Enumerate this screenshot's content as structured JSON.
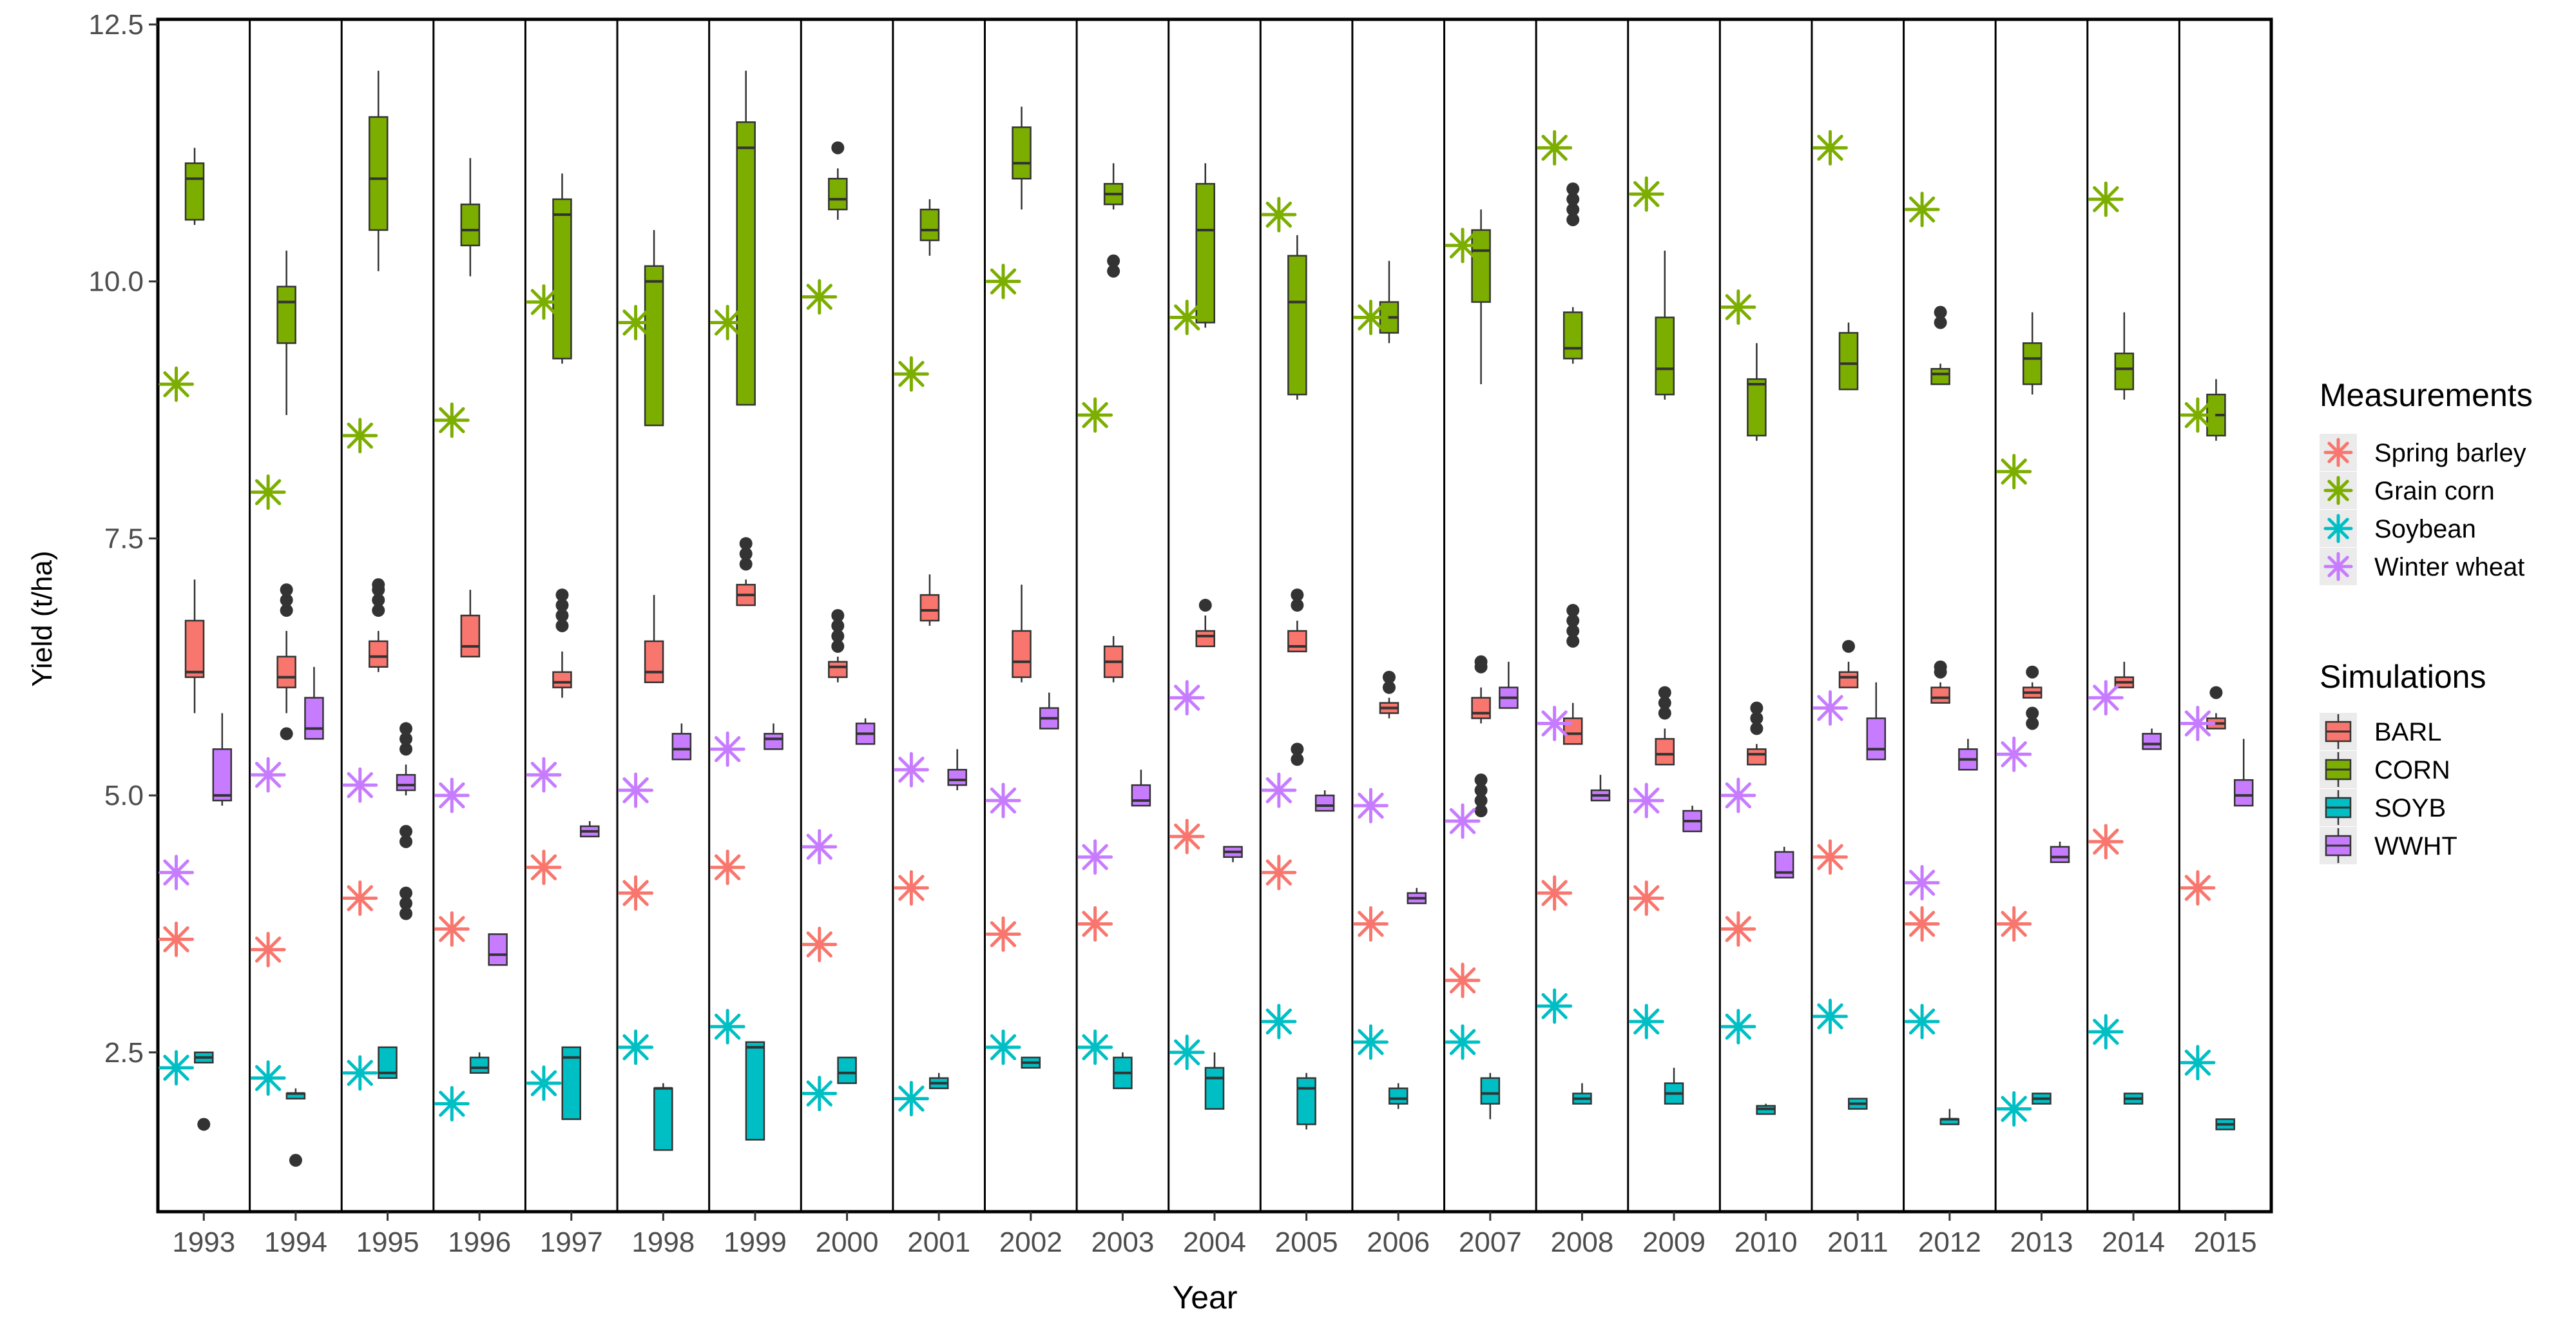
{
  "chart_data": {
    "type": "boxplot",
    "xlabel": "Year",
    "ylabel": "Yield (t/ha)",
    "ylim": [
      0.95,
      12.55
    ],
    "yticks": [
      {
        "value": 2.5,
        "label": "2.5"
      },
      {
        "value": 5.0,
        "label": "5.0"
      },
      {
        "value": 7.5,
        "label": "7.5"
      },
      {
        "value": 10.0,
        "label": "10.0"
      },
      {
        "value": 12.5,
        "label": "12.5"
      }
    ],
    "grid": false,
    "legend_position": "right",
    "facet_by": "year",
    "years": [
      "1993",
      "1994",
      "1995",
      "1996",
      "1997",
      "1998",
      "1999",
      "2000",
      "2001",
      "2002",
      "2003",
      "2004",
      "2005",
      "2006",
      "2007",
      "2008",
      "2009",
      "2010",
      "2011",
      "2012",
      "2013",
      "2014",
      "2015"
    ],
    "simulations": {
      "legend_title": "Simulations",
      "series": [
        {
          "name": "BARL",
          "color": "#F8766D",
          "boxes": [
            [
              5.8,
              6.15,
              6.2,
              6.7,
              7.1,
              []
            ],
            [
              5.8,
              6.05,
              6.15,
              6.35,
              6.6,
              [
                5.6,
                6.8,
                6.9,
                7.0
              ]
            ],
            [
              6.2,
              6.25,
              6.35,
              6.5,
              6.6,
              [
                6.8,
                6.9,
                7.0,
                7.05
              ]
            ],
            [
              6.35,
              6.35,
              6.45,
              6.75,
              7.0,
              []
            ],
            [
              5.95,
              6.05,
              6.1,
              6.2,
              6.4,
              [
                6.65,
                6.75,
                6.85,
                6.95
              ]
            ],
            [
              6.1,
              6.1,
              6.2,
              6.5,
              6.95,
              []
            ],
            [
              6.85,
              6.85,
              6.95,
              7.05,
              7.1,
              [
                7.25,
                7.35,
                7.45
              ]
            ],
            [
              6.1,
              6.15,
              6.25,
              6.3,
              6.35,
              [
                6.45,
                6.55,
                6.65,
                6.75
              ]
            ],
            [
              6.65,
              6.7,
              6.8,
              6.95,
              7.15,
              []
            ],
            [
              6.1,
              6.15,
              6.3,
              6.6,
              7.05,
              []
            ],
            [
              6.1,
              6.15,
              6.3,
              6.45,
              6.55,
              []
            ],
            [
              6.45,
              6.45,
              6.55,
              6.6,
              6.75,
              [
                6.85
              ]
            ],
            [
              6.4,
              6.4,
              6.45,
              6.6,
              6.7,
              [
                5.35,
                5.45,
                6.85,
                6.95
              ]
            ],
            [
              5.75,
              5.8,
              5.85,
              5.9,
              5.95,
              [
                6.05,
                6.15
              ]
            ],
            [
              5.7,
              5.75,
              5.8,
              5.95,
              6.05,
              [
                4.85,
                4.95,
                5.05,
                5.15,
                6.25,
                6.3
              ]
            ],
            [
              5.5,
              5.5,
              5.6,
              5.75,
              5.9,
              [
                6.5,
                6.6,
                6.7,
                6.8
              ]
            ],
            [
              5.3,
              5.3,
              5.4,
              5.55,
              5.65,
              [
                5.8,
                5.9,
                6.0
              ]
            ],
            [
              5.3,
              5.3,
              5.4,
              5.45,
              5.5,
              [
                5.65,
                5.75,
                5.85
              ]
            ],
            [
              6.05,
              6.05,
              6.15,
              6.2,
              6.3,
              [
                6.45
              ]
            ],
            [
              5.9,
              5.9,
              5.95,
              6.05,
              6.1,
              [
                6.2,
                6.25
              ]
            ],
            [
              5.95,
              5.95,
              6.0,
              6.05,
              6.1,
              [
                5.7,
                5.8,
                6.2
              ]
            ],
            [
              6.05,
              6.05,
              6.1,
              6.15,
              6.3,
              []
            ],
            [
              5.65,
              5.65,
              5.7,
              5.75,
              5.8,
              [
                6.0
              ]
            ]
          ]
        },
        {
          "name": "CORN",
          "color": "#7CAE00",
          "boxes": [
            [
              10.55,
              10.6,
              11.0,
              11.15,
              11.3,
              []
            ],
            [
              8.7,
              9.4,
              9.8,
              9.95,
              10.3,
              []
            ],
            [
              10.1,
              10.5,
              11.0,
              11.6,
              12.05,
              []
            ],
            [
              10.05,
              10.35,
              10.5,
              10.75,
              11.2,
              []
            ],
            [
              9.2,
              9.25,
              10.65,
              10.8,
              11.05,
              []
            ],
            [
              8.6,
              8.6,
              10.0,
              10.15,
              10.5,
              []
            ],
            [
              8.8,
              8.8,
              11.3,
              11.55,
              12.05,
              []
            ],
            [
              10.6,
              10.7,
              10.8,
              11.0,
              11.1,
              [
                11.3
              ]
            ],
            [
              10.25,
              10.4,
              10.5,
              10.7,
              10.8,
              []
            ],
            [
              10.7,
              11.0,
              11.15,
              11.5,
              11.7,
              []
            ],
            [
              10.7,
              10.75,
              10.85,
              10.95,
              11.15,
              [
                10.1,
                10.2
              ]
            ],
            [
              9.55,
              9.6,
              10.5,
              10.95,
              11.15,
              []
            ],
            [
              8.85,
              8.9,
              9.8,
              10.25,
              10.45,
              []
            ],
            [
              9.4,
              9.5,
              9.65,
              9.8,
              10.2,
              []
            ],
            [
              9.0,
              9.8,
              10.3,
              10.5,
              10.7,
              []
            ],
            [
              9.2,
              9.25,
              9.35,
              9.7,
              9.75,
              [
                10.6,
                10.7,
                10.8,
                10.9
              ]
            ],
            [
              8.85,
              8.9,
              9.15,
              9.65,
              10.3,
              []
            ],
            [
              8.45,
              8.5,
              9.0,
              9.05,
              9.4,
              []
            ],
            [
              8.95,
              8.95,
              9.2,
              9.5,
              9.6,
              []
            ],
            [
              9.0,
              9.0,
              9.1,
              9.15,
              9.2,
              [
                9.6,
                9.7
              ]
            ],
            [
              8.9,
              9.0,
              9.25,
              9.4,
              9.7,
              []
            ],
            [
              8.85,
              8.95,
              9.15,
              9.3,
              9.7,
              []
            ],
            [
              8.45,
              8.5,
              8.7,
              8.9,
              9.05,
              []
            ]
          ]
        },
        {
          "name": "SOYB",
          "color": "#00BFC4",
          "boxes": [
            [
              2.4,
              2.4,
              2.45,
              2.5,
              2.5,
              [
                1.8
              ]
            ],
            [
              2.05,
              2.05,
              2.1,
              2.1,
              2.15,
              [
                1.45
              ]
            ],
            [
              2.25,
              2.25,
              2.3,
              2.55,
              2.55,
              []
            ],
            [
              2.3,
              2.3,
              2.35,
              2.45,
              2.5,
              []
            ],
            [
              1.85,
              1.85,
              2.45,
              2.55,
              2.55,
              []
            ],
            [
              1.55,
              1.55,
              2.15,
              2.15,
              2.2,
              []
            ],
            [
              1.65,
              1.65,
              2.55,
              2.6,
              2.6,
              []
            ],
            [
              2.2,
              2.2,
              2.3,
              2.45,
              2.45,
              []
            ],
            [
              2.15,
              2.15,
              2.2,
              2.25,
              2.3,
              []
            ],
            [
              2.35,
              2.35,
              2.4,
              2.45,
              2.45,
              []
            ],
            [
              2.15,
              2.15,
              2.3,
              2.45,
              2.5,
              []
            ],
            [
              1.95,
              1.95,
              2.25,
              2.35,
              2.5,
              []
            ],
            [
              1.75,
              1.8,
              2.15,
              2.25,
              2.3,
              []
            ],
            [
              1.95,
              2.0,
              2.05,
              2.15,
              2.2,
              []
            ],
            [
              1.85,
              2.0,
              2.1,
              2.25,
              2.3,
              []
            ],
            [
              2.0,
              2.0,
              2.05,
              2.1,
              2.2,
              []
            ],
            [
              2.0,
              2.0,
              2.1,
              2.2,
              2.35,
              []
            ],
            [
              1.9,
              1.9,
              1.95,
              1.98,
              2.0,
              []
            ],
            [
              1.95,
              1.95,
              2.0,
              2.05,
              2.05,
              []
            ],
            [
              1.8,
              1.8,
              1.85,
              1.85,
              1.95,
              []
            ],
            [
              2.0,
              2.0,
              2.05,
              2.1,
              2.1,
              []
            ],
            [
              2.0,
              2.0,
              2.05,
              2.1,
              2.1,
              []
            ],
            [
              1.75,
              1.75,
              1.8,
              1.85,
              1.85,
              []
            ]
          ]
        },
        {
          "name": "WWHT",
          "color": "#C77CFF",
          "boxes": [
            [
              4.9,
              4.95,
              5.0,
              5.45,
              5.8,
              []
            ],
            [
              5.55,
              5.55,
              5.65,
              5.95,
              6.25,
              []
            ],
            [
              5.0,
              5.05,
              5.1,
              5.2,
              5.3,
              [
                3.85,
                3.95,
                4.05,
                4.55,
                4.65,
                5.45,
                5.55,
                5.65
              ]
            ],
            [
              3.35,
              3.35,
              3.45,
              3.65,
              3.65,
              []
            ],
            [
              4.6,
              4.6,
              4.65,
              4.7,
              4.75,
              []
            ],
            [
              5.35,
              5.35,
              5.45,
              5.6,
              5.7,
              []
            ],
            [
              5.45,
              5.45,
              5.55,
              5.6,
              5.7,
              []
            ],
            [
              5.5,
              5.5,
              5.6,
              5.7,
              5.75,
              []
            ],
            [
              5.05,
              5.1,
              5.15,
              5.25,
              5.45,
              []
            ],
            [
              5.65,
              5.65,
              5.75,
              5.85,
              6.0,
              []
            ],
            [
              4.9,
              4.9,
              4.95,
              5.1,
              5.25,
              []
            ],
            [
              4.35,
              4.4,
              4.45,
              4.5,
              4.5,
              []
            ],
            [
              4.85,
              4.85,
              4.9,
              5.0,
              5.05,
              []
            ],
            [
              3.95,
              3.95,
              4.0,
              4.05,
              4.1,
              []
            ],
            [
              5.85,
              5.85,
              5.95,
              6.05,
              6.3,
              []
            ],
            [
              4.95,
              4.95,
              5.0,
              5.05,
              5.2,
              []
            ],
            [
              4.65,
              4.65,
              4.75,
              4.85,
              4.9,
              []
            ],
            [
              4.2,
              4.2,
              4.25,
              4.45,
              4.5,
              []
            ],
            [
              5.35,
              5.35,
              5.45,
              5.75,
              6.1,
              []
            ],
            [
              5.25,
              5.25,
              5.35,
              5.45,
              5.55,
              []
            ],
            [
              4.35,
              4.35,
              4.4,
              4.5,
              4.55,
              []
            ],
            [
              5.45,
              5.45,
              5.5,
              5.6,
              5.65,
              []
            ],
            [
              4.9,
              4.9,
              5.0,
              5.15,
              5.55,
              []
            ]
          ]
        }
      ]
    },
    "measurements": {
      "legend_title": "Measurements",
      "series": [
        {
          "name": "Spring barley",
          "color": "#F8766D",
          "values": [
            3.6,
            3.5,
            4.0,
            3.7,
            4.3,
            4.05,
            4.3,
            3.55,
            4.1,
            3.65,
            3.75,
            4.6,
            4.25,
            3.75,
            3.2,
            4.05,
            4.0,
            3.7,
            4.4,
            3.75,
            3.75,
            4.55,
            4.1
          ]
        },
        {
          "name": "Grain corn",
          "color": "#7CAE00",
          "values": [
            9.0,
            7.95,
            8.5,
            8.65,
            9.8,
            9.6,
            9.6,
            9.85,
            9.1,
            10.0,
            8.7,
            9.65,
            10.65,
            9.65,
            10.35,
            11.3,
            10.85,
            9.75,
            11.3,
            10.7,
            8.15,
            10.8,
            8.7
          ]
        },
        {
          "name": "Soybean",
          "color": "#00BFC4",
          "values": [
            2.35,
            2.25,
            2.3,
            2.0,
            2.2,
            2.55,
            2.75,
            2.1,
            2.05,
            2.55,
            2.55,
            2.5,
            2.8,
            2.6,
            2.6,
            2.95,
            2.8,
            2.75,
            2.85,
            2.8,
            1.95,
            2.7,
            2.4
          ]
        },
        {
          "name": "Winter wheat",
          "color": "#C77CFF",
          "values": [
            4.25,
            5.2,
            5.1,
            5.0,
            5.2,
            5.05,
            5.45,
            4.5,
            5.25,
            4.95,
            4.4,
            5.95,
            5.05,
            4.9,
            4.75,
            5.7,
            4.95,
            5.0,
            5.85,
            4.15,
            5.4,
            5.95,
            5.7
          ]
        }
      ]
    }
  }
}
